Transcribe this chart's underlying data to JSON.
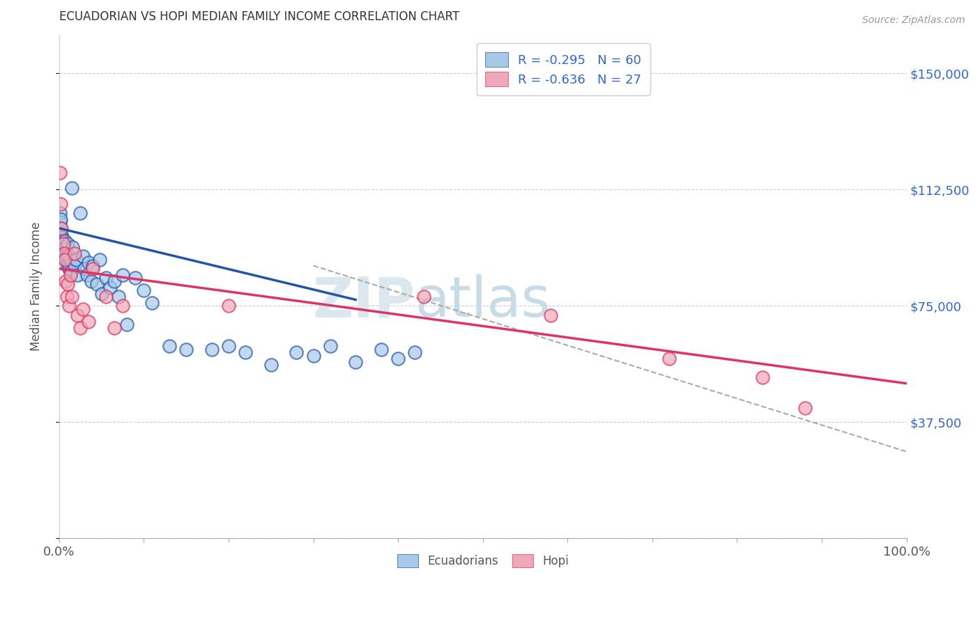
{
  "title": "ECUADORIAN VS HOPI MEDIAN FAMILY INCOME CORRELATION CHART",
  "source": "Source: ZipAtlas.com",
  "ylabel": "Median Family Income",
  "xlim": [
    0,
    1.0
  ],
  "ylim": [
    0,
    162500
  ],
  "yticks": [
    0,
    37500,
    75000,
    112500,
    150000
  ],
  "ytick_labels": [
    "",
    "$37,500",
    "$75,000",
    "$112,500",
    "$150,000"
  ],
  "legend_r1": "R = -0.295",
  "legend_n1": "N = 60",
  "legend_r2": "R = -0.636",
  "legend_n2": "N = 27",
  "blue_color": "#a8c8e8",
  "pink_color": "#f0a8b8",
  "blue_line_color": "#2255aa",
  "pink_line_color": "#dd3366",
  "dash_line_color": "#aaaaaa",
  "label_color": "#3366cc",
  "ecuadorians_x": [
    0.001,
    0.001,
    0.002,
    0.002,
    0.003,
    0.003,
    0.004,
    0.005,
    0.005,
    0.006,
    0.006,
    0.007,
    0.007,
    0.008,
    0.008,
    0.009,
    0.01,
    0.01,
    0.011,
    0.011,
    0.012,
    0.013,
    0.014,
    0.015,
    0.016,
    0.018,
    0.02,
    0.022,
    0.025,
    0.028,
    0.03,
    0.033,
    0.035,
    0.038,
    0.04,
    0.045,
    0.048,
    0.05,
    0.055,
    0.06,
    0.065,
    0.07,
    0.075,
    0.08,
    0.09,
    0.1,
    0.11,
    0.13,
    0.15,
    0.18,
    0.2,
    0.22,
    0.25,
    0.28,
    0.3,
    0.32,
    0.35,
    0.38,
    0.4,
    0.42
  ],
  "ecuadorians_y": [
    105000,
    102000,
    103000,
    100000,
    98000,
    97000,
    96000,
    95000,
    94000,
    92000,
    93000,
    96000,
    91000,
    94000,
    90000,
    92000,
    95000,
    88000,
    91000,
    89000,
    87000,
    90000,
    86000,
    113000,
    94000,
    88000,
    90000,
    85000,
    105000,
    91000,
    87000,
    85000,
    89000,
    83000,
    88000,
    82000,
    90000,
    79000,
    84000,
    81000,
    83000,
    78000,
    85000,
    69000,
    84000,
    80000,
    76000,
    62000,
    61000,
    61000,
    62000,
    60000,
    56000,
    60000,
    59000,
    62000,
    57000,
    61000,
    58000,
    60000
  ],
  "hopi_x": [
    0.001,
    0.002,
    0.003,
    0.005,
    0.006,
    0.007,
    0.008,
    0.009,
    0.01,
    0.012,
    0.013,
    0.015,
    0.018,
    0.022,
    0.025,
    0.028,
    0.035,
    0.04,
    0.055,
    0.065,
    0.075,
    0.2,
    0.43,
    0.58,
    0.72,
    0.83,
    0.88
  ],
  "hopi_y": [
    118000,
    108000,
    100000,
    95000,
    92000,
    90000,
    83000,
    78000,
    82000,
    75000,
    85000,
    78000,
    92000,
    72000,
    68000,
    74000,
    70000,
    87000,
    78000,
    68000,
    75000,
    75000,
    78000,
    72000,
    58000,
    52000,
    42000
  ],
  "blue_line_x": [
    0.001,
    0.35
  ],
  "blue_line_y": [
    100000,
    77000
  ],
  "pink_line_x": [
    0.001,
    1.0
  ],
  "pink_line_y": [
    87000,
    50000
  ],
  "dash_line_x": [
    0.3,
    1.0
  ],
  "dash_line_y": [
    88000,
    28000
  ]
}
